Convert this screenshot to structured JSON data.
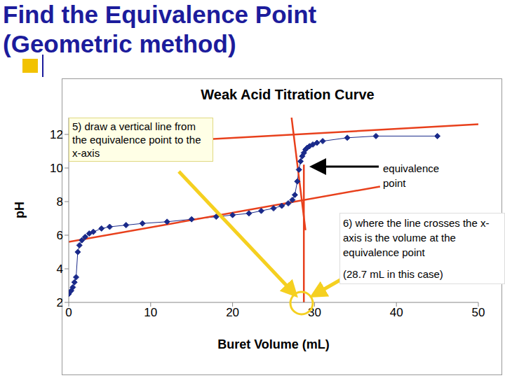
{
  "title": [
    "Find the Equivalence Point",
    "(Geometric method)"
  ],
  "chart_data": {
    "type": "line",
    "title": "Weak Acid Titration Curve",
    "x_label": "Buret Volume (mL)",
    "y_label": "pH",
    "x": [
      0,
      0.3,
      0.5,
      0.7,
      0.9,
      1.1,
      1.3,
      1.6,
      2.0,
      2.5,
      3,
      4,
      5,
      7,
      9,
      12,
      15,
      18,
      20,
      22,
      23.5,
      25,
      26,
      26.8,
      27.3,
      27.6,
      27.9,
      28.1,
      28.3,
      28.5,
      28.7,
      28.9,
      29.1,
      29.4,
      29.8,
      30.3,
      31,
      34,
      37.5,
      45
    ],
    "values": [
      2.5,
      2.7,
      2.9,
      3.2,
      3.5,
      5.0,
      5.4,
      5.7,
      5.9,
      6.1,
      6.2,
      6.4,
      6.5,
      6.6,
      6.7,
      6.8,
      6.95,
      7.1,
      7.2,
      7.3,
      7.45,
      7.6,
      7.75,
      7.9,
      8.1,
      8.4,
      9.2,
      9.9,
      10.4,
      10.7,
      10.9,
      11.1,
      11.2,
      11.3,
      11.4,
      11.5,
      11.6,
      11.8,
      11.9,
      11.9
    ],
    "color": "#1a2a8a",
    "marker": "diamond",
    "xlim": [
      0,
      50
    ],
    "xticks": [
      0,
      10,
      20,
      30,
      40,
      50
    ],
    "ylim": [
      2,
      13
    ],
    "yticks": [
      2,
      4,
      6,
      8,
      10,
      12
    ],
    "grid": false,
    "fit_lines": [
      {
        "color": "#e8401c",
        "x": [
          0,
          38
        ],
        "values": [
          5.6,
          8.9
        ]
      },
      {
        "color": "#e8401c",
        "x": [
          0,
          50
        ],
        "values": [
          11.25,
          12.6
        ]
      },
      {
        "color": "#e8401c",
        "x": [
          27.2,
          28.9
        ],
        "values": [
          13,
          6.3
        ]
      },
      {
        "color": "#e8401c",
        "x": [
          28.7,
          28.7
        ],
        "values": [
          10.2,
          2
        ]
      }
    ],
    "annotations": [
      {
        "text": "5) draw a vertical line from the equivalence point to the x-axis"
      },
      {
        "text": "equivalence point"
      },
      {
        "text": "6) where the line crosses the x-axis is the volume at the equivalence point"
      },
      {
        "text": "(28.7 mL in this case)"
      }
    ]
  }
}
